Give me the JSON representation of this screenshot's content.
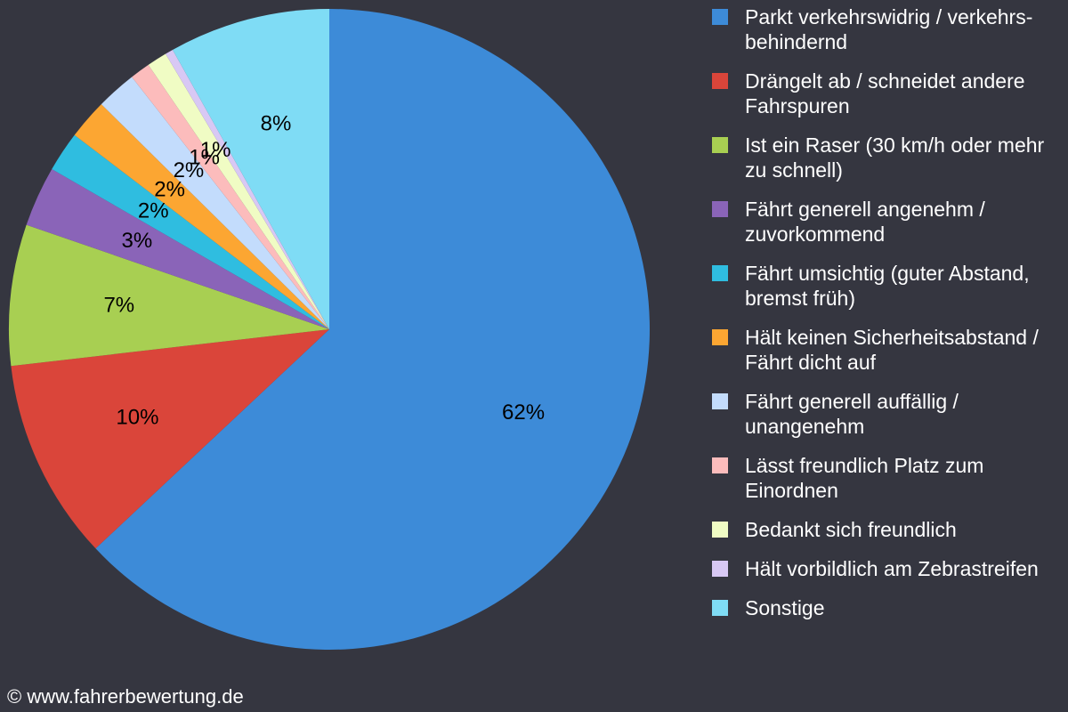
{
  "chart_data": {
    "type": "pie",
    "categories": [
      "Parkt verkehrswidrig / verkehrs-behindernd",
      "Drängelt ab / schneidet andere Fahrspuren",
      "Ist ein Raser (30 km/h oder mehr zu schnell)",
      "Fährt generell angenehm / zuvorkommend",
      "Fährt umsichtig (guter Abstand, bremst früh)",
      "Hält keinen Sicherheitsabstand / Fährt dicht auf",
      "Fährt generell auffällig / unangenehm",
      "Lässt freundlich Platz zum Einordnen",
      "Bedankt sich freundlich",
      "Hält vorbildlich am Zebrastreifen",
      "Sonstige"
    ],
    "values": [
      62,
      10,
      7,
      3,
      2,
      2,
      2,
      1,
      1,
      0.4,
      8
    ],
    "value_labels": [
      "62%",
      "10%",
      "7%",
      "3%",
      "2%",
      "2%",
      "2%",
      "1%",
      "1%",
      null,
      "8%"
    ],
    "colors": [
      "#3d8bd8",
      "#da453a",
      "#a8cf52",
      "#8a64b8",
      "#2fbde0",
      "#fca632",
      "#c3dcfc",
      "#fcbcbc",
      "#f0fcc4",
      "#d8c8f4",
      "#7fdcf5"
    ],
    "legend": "right"
  },
  "footer": "© www.fahrerbewertung.de"
}
